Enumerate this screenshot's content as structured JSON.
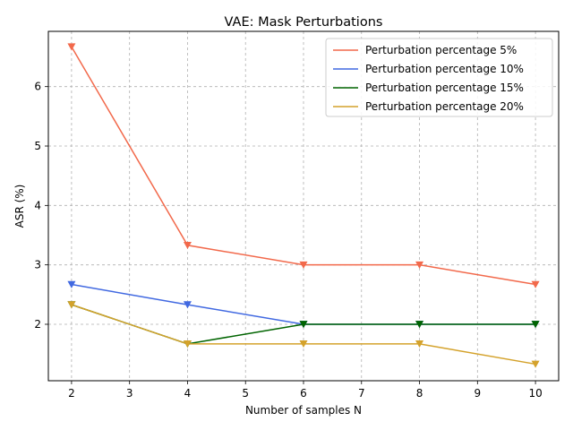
{
  "chart_data": {
    "type": "line",
    "title": "VAE: Mask Perturbations",
    "xlabel": "Number of samples N",
    "ylabel": "ASR (%)",
    "x": [
      2,
      4,
      6,
      8,
      10
    ],
    "xlim": [
      1.6,
      10.4
    ],
    "ylim": [
      1.05,
      6.93
    ],
    "xticks": [
      2,
      3,
      4,
      5,
      6,
      7,
      8,
      9,
      10
    ],
    "yticks": [
      2,
      3,
      4,
      5,
      6
    ],
    "grid": true,
    "legend_position": "top-right",
    "marker": "triangle-down",
    "series": [
      {
        "name": "Perturbation percentage 5%",
        "color": "#f2694b",
        "values": [
          6.67,
          3.33,
          3.0,
          3.0,
          2.67
        ]
      },
      {
        "name": "Perturbation percentage 10%",
        "color": "#4169e1",
        "values": [
          2.67,
          2.33,
          2.0,
          2.0,
          2.0
        ]
      },
      {
        "name": "Perturbation percentage 15%",
        "color": "#006400",
        "values": [
          2.33,
          1.67,
          2.0,
          2.0,
          2.0
        ]
      },
      {
        "name": "Perturbation percentage 20%",
        "color": "#d4a22b",
        "values": [
          2.33,
          1.67,
          1.67,
          1.67,
          1.33
        ]
      }
    ]
  }
}
